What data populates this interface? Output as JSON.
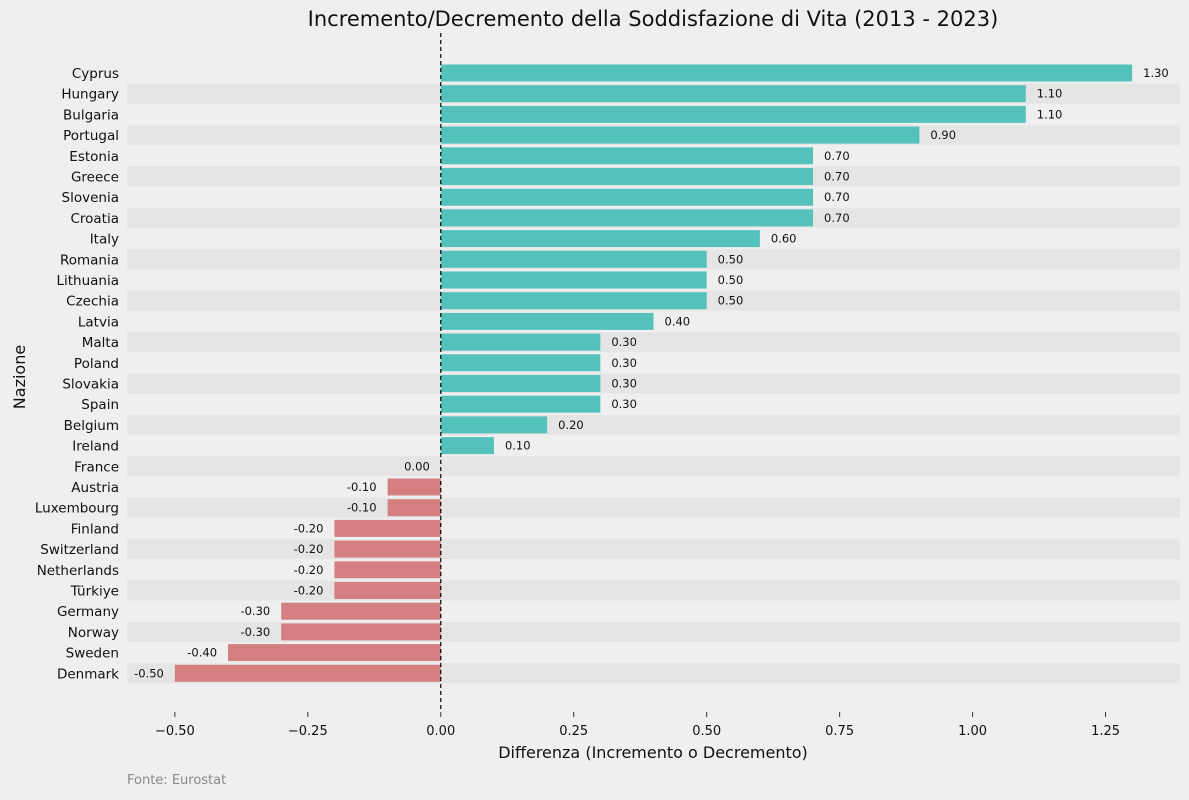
{
  "chart_data": {
    "type": "bar",
    "orientation": "horizontal",
    "title": "Incremento/Decremento della Soddisfazione di Vita (2013 - 2023)",
    "xlabel": "Differenza (Incremento o Decremento)",
    "ylabel": "Nazione",
    "source_note": "Fonte: Eurostat",
    "xlim": [
      -0.59,
      1.39
    ],
    "x_ticks": [
      -0.5,
      -0.25,
      0.0,
      0.25,
      0.5,
      0.75,
      1.0,
      1.25
    ],
    "x_tick_labels": [
      "−0.50",
      "−0.25",
      "0.00",
      "0.25",
      "0.50",
      "0.75",
      "1.00",
      "1.25"
    ],
    "zero_line": "dashed",
    "grid": false,
    "alternating_row_bands": true,
    "categories": [
      "Cyprus",
      "Hungary",
      "Bulgaria",
      "Portugal",
      "Estonia",
      "Greece",
      "Slovenia",
      "Croatia",
      "Italy",
      "Romania",
      "Lithuania",
      "Czechia",
      "Latvia",
      "Malta",
      "Poland",
      "Slovakia",
      "Spain",
      "Belgium",
      "Ireland",
      "France",
      "Austria",
      "Luxembourg",
      "Finland",
      "Switzerland",
      "Netherlands",
      "Türkiye",
      "Germany",
      "Norway",
      "Sweden",
      "Denmark"
    ],
    "values": [
      1.3,
      1.1,
      1.1,
      0.9,
      0.7,
      0.7,
      0.7,
      0.7,
      0.6,
      0.5,
      0.5,
      0.5,
      0.4,
      0.3,
      0.3,
      0.3,
      0.3,
      0.2,
      0.1,
      0.0,
      -0.1,
      -0.1,
      -0.2,
      -0.2,
      -0.2,
      -0.2,
      -0.3,
      -0.3,
      -0.4,
      -0.5
    ],
    "value_labels": [
      "1.30",
      "1.10",
      "1.10",
      "0.90",
      "0.70",
      "0.70",
      "0.70",
      "0.70",
      "0.60",
      "0.50",
      "0.50",
      "0.50",
      "0.40",
      "0.30",
      "0.30",
      "0.30",
      "0.30",
      "0.20",
      "0.10",
      "0.00",
      "-0.10",
      "-0.10",
      "-0.20",
      "-0.20",
      "-0.20",
      "-0.20",
      "-0.30",
      "-0.30",
      "-0.40",
      "-0.50"
    ],
    "colors": {
      "positive": "#55c1bb",
      "negative": "#d58080",
      "band": "#e5e5e5",
      "background": "#efefef"
    }
  }
}
